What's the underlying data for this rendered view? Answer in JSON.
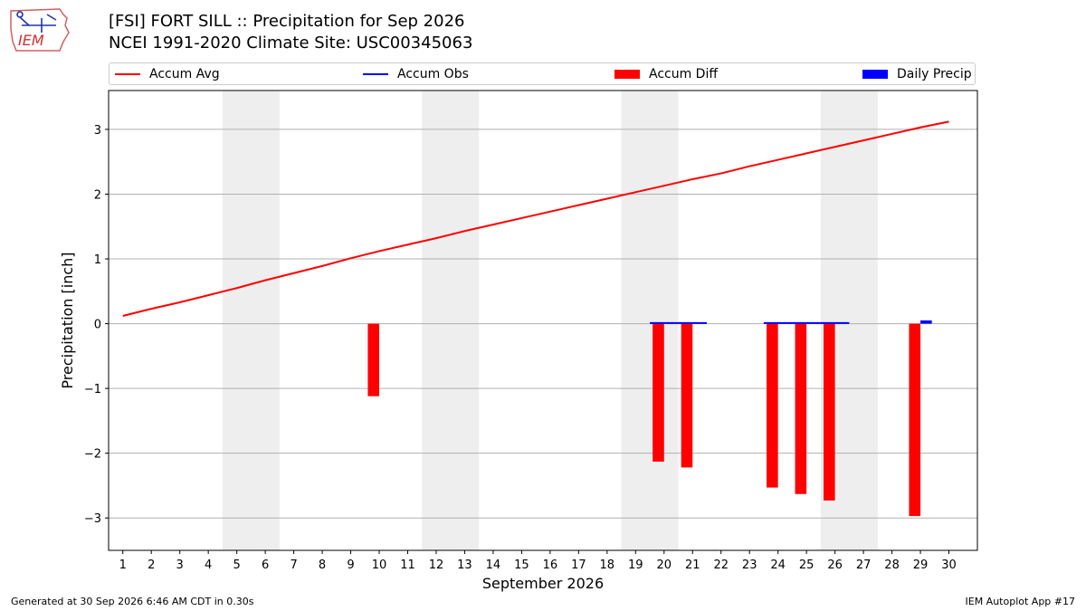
{
  "header": {
    "logo_text": "IEM",
    "title_line1": "[FSI] FORT SILL :: Precipitation for Sep 2026",
    "title_line2": "NCEI 1991-2020 Climate Site: USC00345063"
  },
  "footer": {
    "generated": "Generated at 30 Sep 2026 6:46 AM CDT in 0.30s",
    "app": "IEM Autoplot App #17"
  },
  "colors": {
    "avg": "#ff0000",
    "obs": "#0000ff",
    "diff": "#ff0000",
    "daily": "#0000ff",
    "weekend": "#eeeeee",
    "grid": "#b0b0b0"
  },
  "chart_data": {
    "type": "bar",
    "title": "[FSI] FORT SILL :: Precipitation for Sep 2026",
    "xlabel": "September 2026",
    "ylabel": "Precipitation [inch]",
    "xlim": [
      0.5,
      31
    ],
    "ylim": [
      -3.5,
      3.6
    ],
    "yticks": [
      -3,
      -2,
      -1,
      0,
      1,
      2,
      3
    ],
    "ytick_labels": [
      "−3",
      "−2",
      "−1",
      "0",
      "1",
      "2",
      "3"
    ],
    "xticks": [
      1,
      2,
      3,
      4,
      5,
      6,
      7,
      8,
      9,
      10,
      11,
      12,
      13,
      14,
      15,
      16,
      17,
      18,
      19,
      20,
      21,
      22,
      23,
      24,
      25,
      26,
      27,
      28,
      29,
      30
    ],
    "grid": "y",
    "legend_position": "top",
    "legend": [
      "Accum Avg",
      "Accum Obs",
      "Accum Diff",
      "Daily Precip"
    ],
    "weekend_spans": [
      [
        4.5,
        6.5
      ],
      [
        11.5,
        13.5
      ],
      [
        18.5,
        20.5
      ],
      [
        25.5,
        27.5
      ]
    ],
    "series": [
      {
        "name": "Accum Avg",
        "type": "line",
        "x": [
          1,
          2,
          3,
          4,
          5,
          6,
          7,
          8,
          9,
          10,
          11,
          12,
          13,
          14,
          15,
          16,
          17,
          18,
          19,
          20,
          21,
          22,
          23,
          24,
          25,
          26,
          27,
          28,
          29,
          30
        ],
        "values": [
          0.12,
          0.23,
          0.33,
          0.44,
          0.55,
          0.67,
          0.78,
          0.89,
          1.01,
          1.12,
          1.22,
          1.32,
          1.43,
          1.53,
          1.63,
          1.73,
          1.83,
          1.93,
          2.03,
          2.13,
          2.23,
          2.32,
          2.43,
          2.53,
          2.63,
          2.73,
          2.83,
          2.93,
          3.03,
          3.12
        ]
      },
      {
        "name": "Accum Obs",
        "type": "line",
        "x": [
          20,
          21,
          24,
          25,
          26
        ],
        "values": [
          0.01,
          0.01,
          0.01,
          0.01,
          0.01
        ]
      },
      {
        "name": "Accum Diff",
        "type": "bar",
        "x": [
          10,
          20,
          21,
          24,
          25,
          26,
          29
        ],
        "values": [
          -1.12,
          -2.13,
          -2.22,
          -2.53,
          -2.63,
          -2.73,
          -2.97
        ]
      },
      {
        "name": "Daily Precip",
        "type": "bar",
        "x": [
          29
        ],
        "values": [
          0.05
        ]
      }
    ]
  }
}
